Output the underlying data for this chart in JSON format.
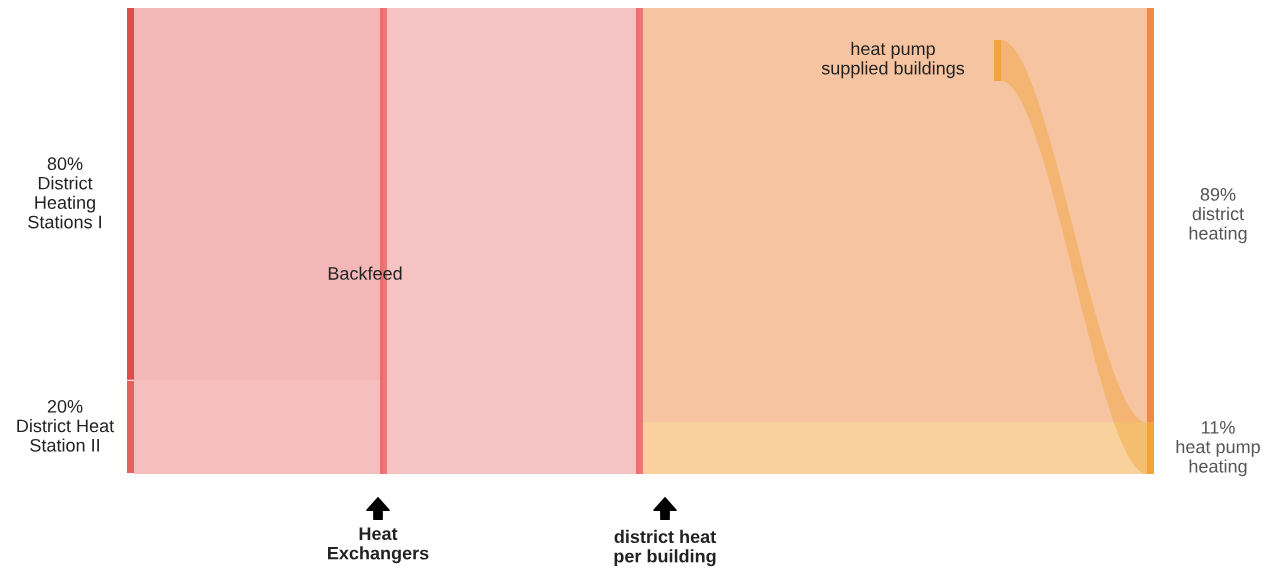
{
  "chart_data": {
    "type": "other",
    "categories": [
      "District\nHeating\nStations I",
      "District Heat\nStation II",
      "district\nheating",
      "heat pump\nheating"
    ],
    "values": [
      80,
      20,
      89,
      11
    ],
    "value_labels": [
      "80%",
      "20%",
      "89%",
      "11%"
    ],
    "colors": [
      "#e04a4c",
      "#e8605e",
      "#f08a44",
      "#f2a43a"
    ],
    "annotations": [
      "Backfeed",
      "heat pump\nsupplied buildings",
      "Heat\nExchangers",
      "district heat\nper building"
    ]
  }
}
